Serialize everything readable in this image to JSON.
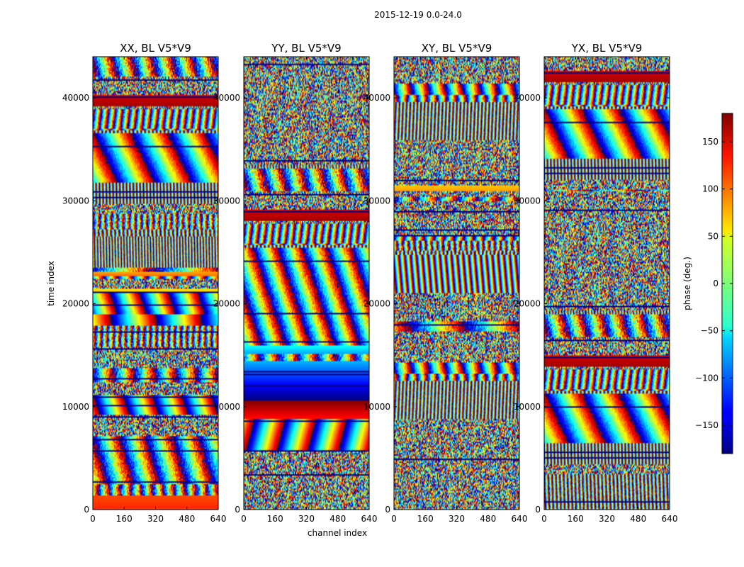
{
  "chart_data": {
    "type": "heatmap",
    "suptitle": "2015-12-19 0.0-24.0",
    "xlabel": "channel index",
    "ylabel": "time index",
    "xlim": [
      0,
      640
    ],
    "ylim": [
      0,
      44000
    ],
    "x_ticks": [
      "0",
      "160",
      "320",
      "480",
      "640"
    ],
    "y_ticks": [
      "0",
      "10000",
      "20000",
      "30000",
      "40000"
    ],
    "panels": [
      {
        "title": "XX, BL V5*V9",
        "polarization": "XX"
      },
      {
        "title": "YY, BL V5*V9",
        "polarization": "YY"
      },
      {
        "title": "XY, BL V5*V9",
        "polarization": "XY"
      },
      {
        "title": "YX, BL V5*V9",
        "polarization": "YX"
      }
    ],
    "colorbar": {
      "label": "phase (deg.)",
      "range": [
        -180,
        180
      ],
      "ticks": [
        "150",
        "100",
        "50",
        "0",
        "−50",
        "−100",
        "−150"
      ],
      "colormap": "jet"
    }
  }
}
